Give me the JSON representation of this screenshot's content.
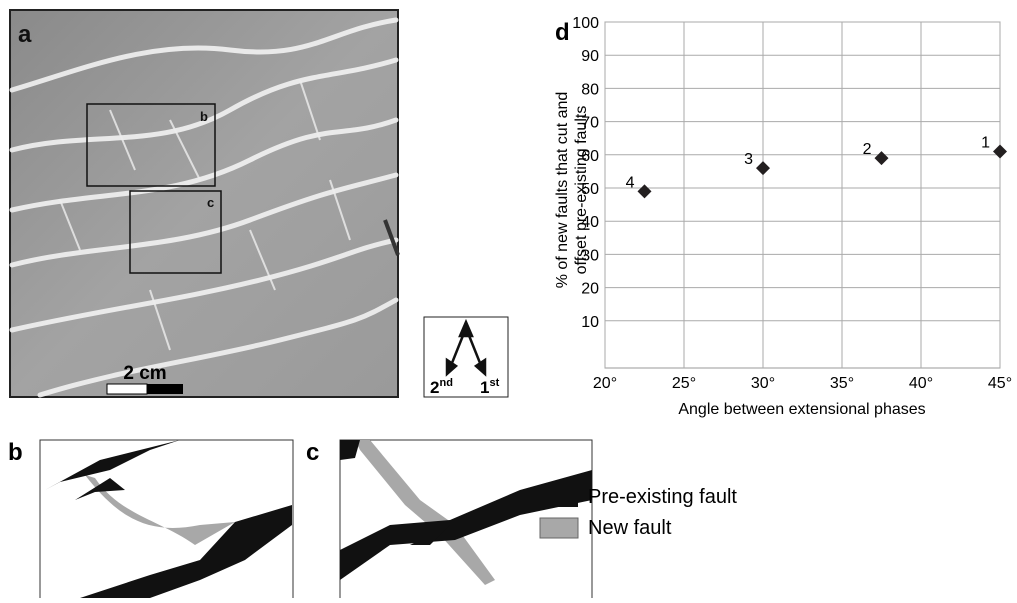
{
  "chart_data": {
    "type": "scatter",
    "panel_label": "d",
    "x_label": "Angle between extensional phases",
    "y_label": [
      "% of new faults that cut and",
      "offset pre-existing faults"
    ],
    "x": [
      22.5,
      30,
      37.5,
      45
    ],
    "values": [
      49,
      56,
      59,
      61
    ],
    "point_labels": [
      "4",
      "3",
      "2",
      "1"
    ],
    "color": "#231f20",
    "marker": "diamond",
    "xlim": [
      20,
      45
    ],
    "xticks": [
      {
        "value": 20,
        "label": "20°"
      },
      {
        "value": 25,
        "label": "25°"
      },
      {
        "value": 30,
        "label": "30°"
      },
      {
        "value": 35,
        "label": "35°"
      },
      {
        "value": 40,
        "label": "40°"
      },
      {
        "value": 45,
        "label": "45°"
      }
    ],
    "ylim": [
      0,
      100
    ],
    "yticks": [
      10,
      20,
      30,
      40,
      50,
      60,
      70,
      80,
      90,
      100
    ],
    "grid": true
  },
  "photo": {
    "panel_label": "a",
    "box_labels": [
      "b",
      "c"
    ],
    "scale_label": "2 cm",
    "compass": [
      {
        "base": "2",
        "sup": "nd"
      },
      {
        "base": "1",
        "sup": "st"
      }
    ]
  },
  "sketches": {
    "panel_labels": [
      "b",
      "c"
    ]
  },
  "legend": [
    "Pre-existing fault",
    "New fault"
  ]
}
